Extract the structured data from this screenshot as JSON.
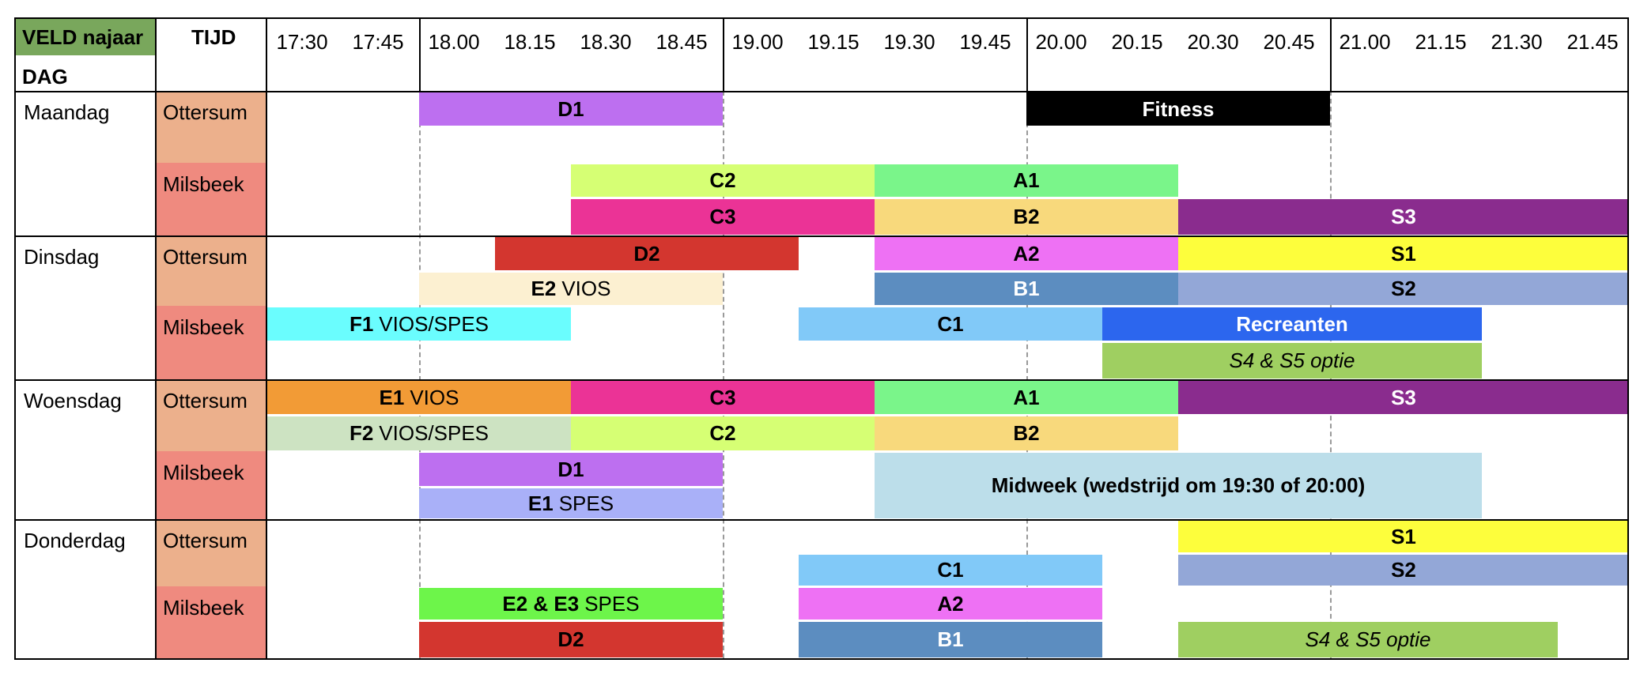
{
  "header": {
    "veld_label": "VELD najaar",
    "veld_color": "#79a75c",
    "dag_label": "DAG",
    "tijd_label": "TIJD"
  },
  "times": [
    "17:30",
    "17:45",
    "18.00",
    "18.15",
    "18.30",
    "18.45",
    "19.00",
    "19.15",
    "19.30",
    "19.45",
    "20.00",
    "20.15",
    "20.30",
    "20.45",
    "21.00",
    "21.15",
    "21.30",
    "21.45"
  ],
  "colors": {
    "ottersum": "#ecb08c",
    "milsbeek": "#ef8a7f"
  },
  "days": [
    {
      "name": "Maandag",
      "locations": [
        {
          "name": "Ottersum"
        },
        {
          "name": "Milsbeek"
        }
      ]
    },
    {
      "name": "Dinsdag",
      "locations": [
        {
          "name": "Ottersum"
        },
        {
          "name": "Milsbeek"
        }
      ]
    },
    {
      "name": "Woensdag",
      "locations": [
        {
          "name": "Ottersum"
        },
        {
          "name": "Milsbeek"
        }
      ]
    },
    {
      "name": "Donderdag",
      "locations": [
        {
          "name": "Ottersum"
        },
        {
          "name": "Milsbeek"
        }
      ]
    }
  ],
  "blocks": [
    {
      "id": "mon-d1",
      "team": "D1",
      "extra": "",
      "start": "18.00",
      "end": "19.00",
      "color": "#bd6ff0",
      "text_color": "#000000"
    },
    {
      "id": "mon-fitness",
      "team": "Fitness",
      "extra": "",
      "start": "20.00",
      "end": "21.00",
      "color": "#000000",
      "text_color": "#ffffff"
    },
    {
      "id": "mon-c2",
      "team": "C2",
      "extra": "",
      "start": "18.30",
      "end": "19.30",
      "color": "#d6ff74",
      "text_color": "#000000"
    },
    {
      "id": "mon-a1",
      "team": "A1",
      "extra": "",
      "start": "19.30",
      "end": "20.30",
      "color": "#7af58a",
      "text_color": "#000000"
    },
    {
      "id": "mon-c3",
      "team": "C3",
      "extra": "",
      "start": "18.30",
      "end": "19.30",
      "color": "#eb3396",
      "text_color": "#000000"
    },
    {
      "id": "mon-b2",
      "team": "B2",
      "extra": "",
      "start": "19.30",
      "end": "20.30",
      "color": "#f8d97c",
      "text_color": "#000000"
    },
    {
      "id": "mon-s3",
      "team": "S3",
      "extra": "",
      "start": "20.30",
      "end": "22.00",
      "color": "#8a2c8e",
      "text_color": "#ffffff"
    },
    {
      "id": "tue-d2",
      "team": "D2",
      "extra": "",
      "start": "18.15",
      "end": "19.15",
      "color": "#d3362f",
      "text_color": "#000000"
    },
    {
      "id": "tue-a2",
      "team": "A2",
      "extra": "",
      "start": "19.30",
      "end": "20.30",
      "color": "#ee71f4",
      "text_color": "#000000"
    },
    {
      "id": "tue-s1",
      "team": "S1",
      "extra": "",
      "start": "20.30",
      "end": "22.00",
      "color": "#fdfe3c",
      "text_color": "#000000"
    },
    {
      "id": "tue-e2",
      "team": "E2",
      "extra": "VIOS",
      "start": "18.00",
      "end": "19.00",
      "color": "#fcf0d1",
      "text_color": "#000000"
    },
    {
      "id": "tue-b1",
      "team": "B1",
      "extra": "",
      "start": "19.30",
      "end": "20.30",
      "color": "#5c8dc0",
      "text_color": "#ffffff"
    },
    {
      "id": "tue-s2",
      "team": "S2",
      "extra": "",
      "start": "20.30",
      "end": "22.00",
      "color": "#93a7d7",
      "text_color": "#000000"
    },
    {
      "id": "tue-f1",
      "team": "F1",
      "extra": "VIOS/SPES",
      "start": "17:30",
      "end": "18.30",
      "color": "#6afdfe",
      "text_color": "#000000"
    },
    {
      "id": "tue-c1",
      "team": "C1",
      "extra": "",
      "start": "19.15",
      "end": "20.15",
      "color": "#81c9f8",
      "text_color": "#000000"
    },
    {
      "id": "tue-recreanten",
      "team": "Recreanten",
      "extra": "",
      "start": "20.15",
      "end": "21.30",
      "color": "#2c66ee",
      "text_color": "#ffffff"
    },
    {
      "id": "tue-s4s5",
      "team": "",
      "extra": "S4 & S5 optie",
      "italic": true,
      "start": "20.15",
      "end": "21.30",
      "color": "#9fcf61",
      "text_color": "#000000"
    },
    {
      "id": "wed-e1",
      "team": "E1",
      "extra": "VIOS",
      "start": "17:30",
      "end": "18.30",
      "color": "#f29b36",
      "text_color": "#000000"
    },
    {
      "id": "wed-c3",
      "team": "C3",
      "extra": "",
      "start": "18.30",
      "end": "19.30",
      "color": "#eb3396",
      "text_color": "#000000"
    },
    {
      "id": "wed-a1",
      "team": "A1",
      "extra": "",
      "start": "19.30",
      "end": "20.30",
      "color": "#7af58a",
      "text_color": "#000000"
    },
    {
      "id": "wed-s3",
      "team": "S3",
      "extra": "",
      "start": "20.30",
      "end": "22.00",
      "color": "#8a2c8e",
      "text_color": "#ffffff"
    },
    {
      "id": "wed-f2",
      "team": "F2",
      "extra": "VIOS/SPES",
      "start": "17:30",
      "end": "18.30",
      "color": "#cde3c2",
      "text_color": "#000000"
    },
    {
      "id": "wed-c2",
      "team": "C2",
      "extra": "",
      "start": "18.30",
      "end": "19.30",
      "color": "#d6ff74",
      "text_color": "#000000"
    },
    {
      "id": "wed-b2",
      "team": "B2",
      "extra": "",
      "start": "19.30",
      "end": "20.30",
      "color": "#f8d97c",
      "text_color": "#000000"
    },
    {
      "id": "wed-d1",
      "team": "D1",
      "extra": "",
      "start": "18.00",
      "end": "19.00",
      "color": "#bd6ff0",
      "text_color": "#000000"
    },
    {
      "id": "wed-e1spes",
      "team": "E1",
      "extra": "SPES",
      "start": "18.00",
      "end": "19.00",
      "color": "#a9b0f8",
      "text_color": "#000000"
    },
    {
      "id": "wed-midweek",
      "team": "Midweek (wedstrijd om 19:30 of 20:00)",
      "extra": "",
      "start": "19.30",
      "end": "21.30",
      "color": "#bcdeea",
      "text_color": "#000000"
    },
    {
      "id": "thu-s1",
      "team": "S1",
      "extra": "",
      "start": "20.30",
      "end": "22.00",
      "color": "#fdfe3c",
      "text_color": "#000000"
    },
    {
      "id": "thu-c1",
      "team": "C1",
      "extra": "",
      "start": "19.15",
      "end": "20.15",
      "color": "#81c9f8",
      "text_color": "#000000"
    },
    {
      "id": "thu-s2",
      "team": "S2",
      "extra": "",
      "start": "20.30",
      "end": "22.00",
      "color": "#93a7d7",
      "text_color": "#000000"
    },
    {
      "id": "thu-e2e3",
      "team": "E2 & E3",
      "extra": "SPES",
      "start": "18.00",
      "end": "19.00",
      "color": "#6df54a",
      "text_color": "#000000"
    },
    {
      "id": "thu-a2",
      "team": "A2",
      "extra": "",
      "start": "19.15",
      "end": "20.15",
      "color": "#ee71f4",
      "text_color": "#000000"
    },
    {
      "id": "thu-d2",
      "team": "D2",
      "extra": "",
      "start": "18.00",
      "end": "19.00",
      "color": "#d3362f",
      "text_color": "#000000"
    },
    {
      "id": "thu-b1",
      "team": "B1",
      "extra": "",
      "start": "19.15",
      "end": "20.15",
      "color": "#5c8dc0",
      "text_color": "#ffffff"
    },
    {
      "id": "thu-s4s5",
      "team": "",
      "extra": "S4 & S5 optie",
      "italic": true,
      "start": "20.30",
      "end": "21.45",
      "color": "#9fcf61",
      "text_color": "#000000"
    }
  ]
}
